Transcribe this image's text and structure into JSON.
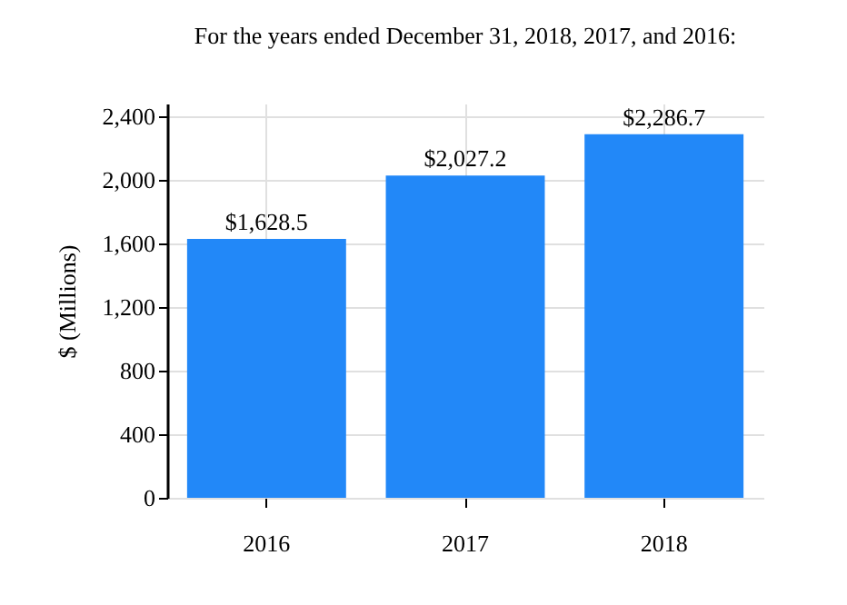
{
  "chart_data": {
    "type": "bar",
    "title": "For the years ended December 31, 2018, 2017, and 2016:",
    "ylabel": "$ (Millions)",
    "categories": [
      "2016",
      "2017",
      "2018"
    ],
    "values": [
      1628.5,
      2027.2,
      2286.7
    ],
    "value_labels": [
      "$1,628.5",
      "$2,027.2",
      "$2,286.7"
    ],
    "color": "#2288f8",
    "ylim": [
      0,
      2480
    ],
    "yticks": [
      0,
      400,
      800,
      {
        "value": 1200,
        "label": "1,200"
      },
      {
        "value": 1600,
        "label": "1,600"
      },
      {
        "value": 2000,
        "label": "2,000"
      },
      {
        "value": 2400,
        "label": "2,400"
      }
    ],
    "grid": true
  }
}
